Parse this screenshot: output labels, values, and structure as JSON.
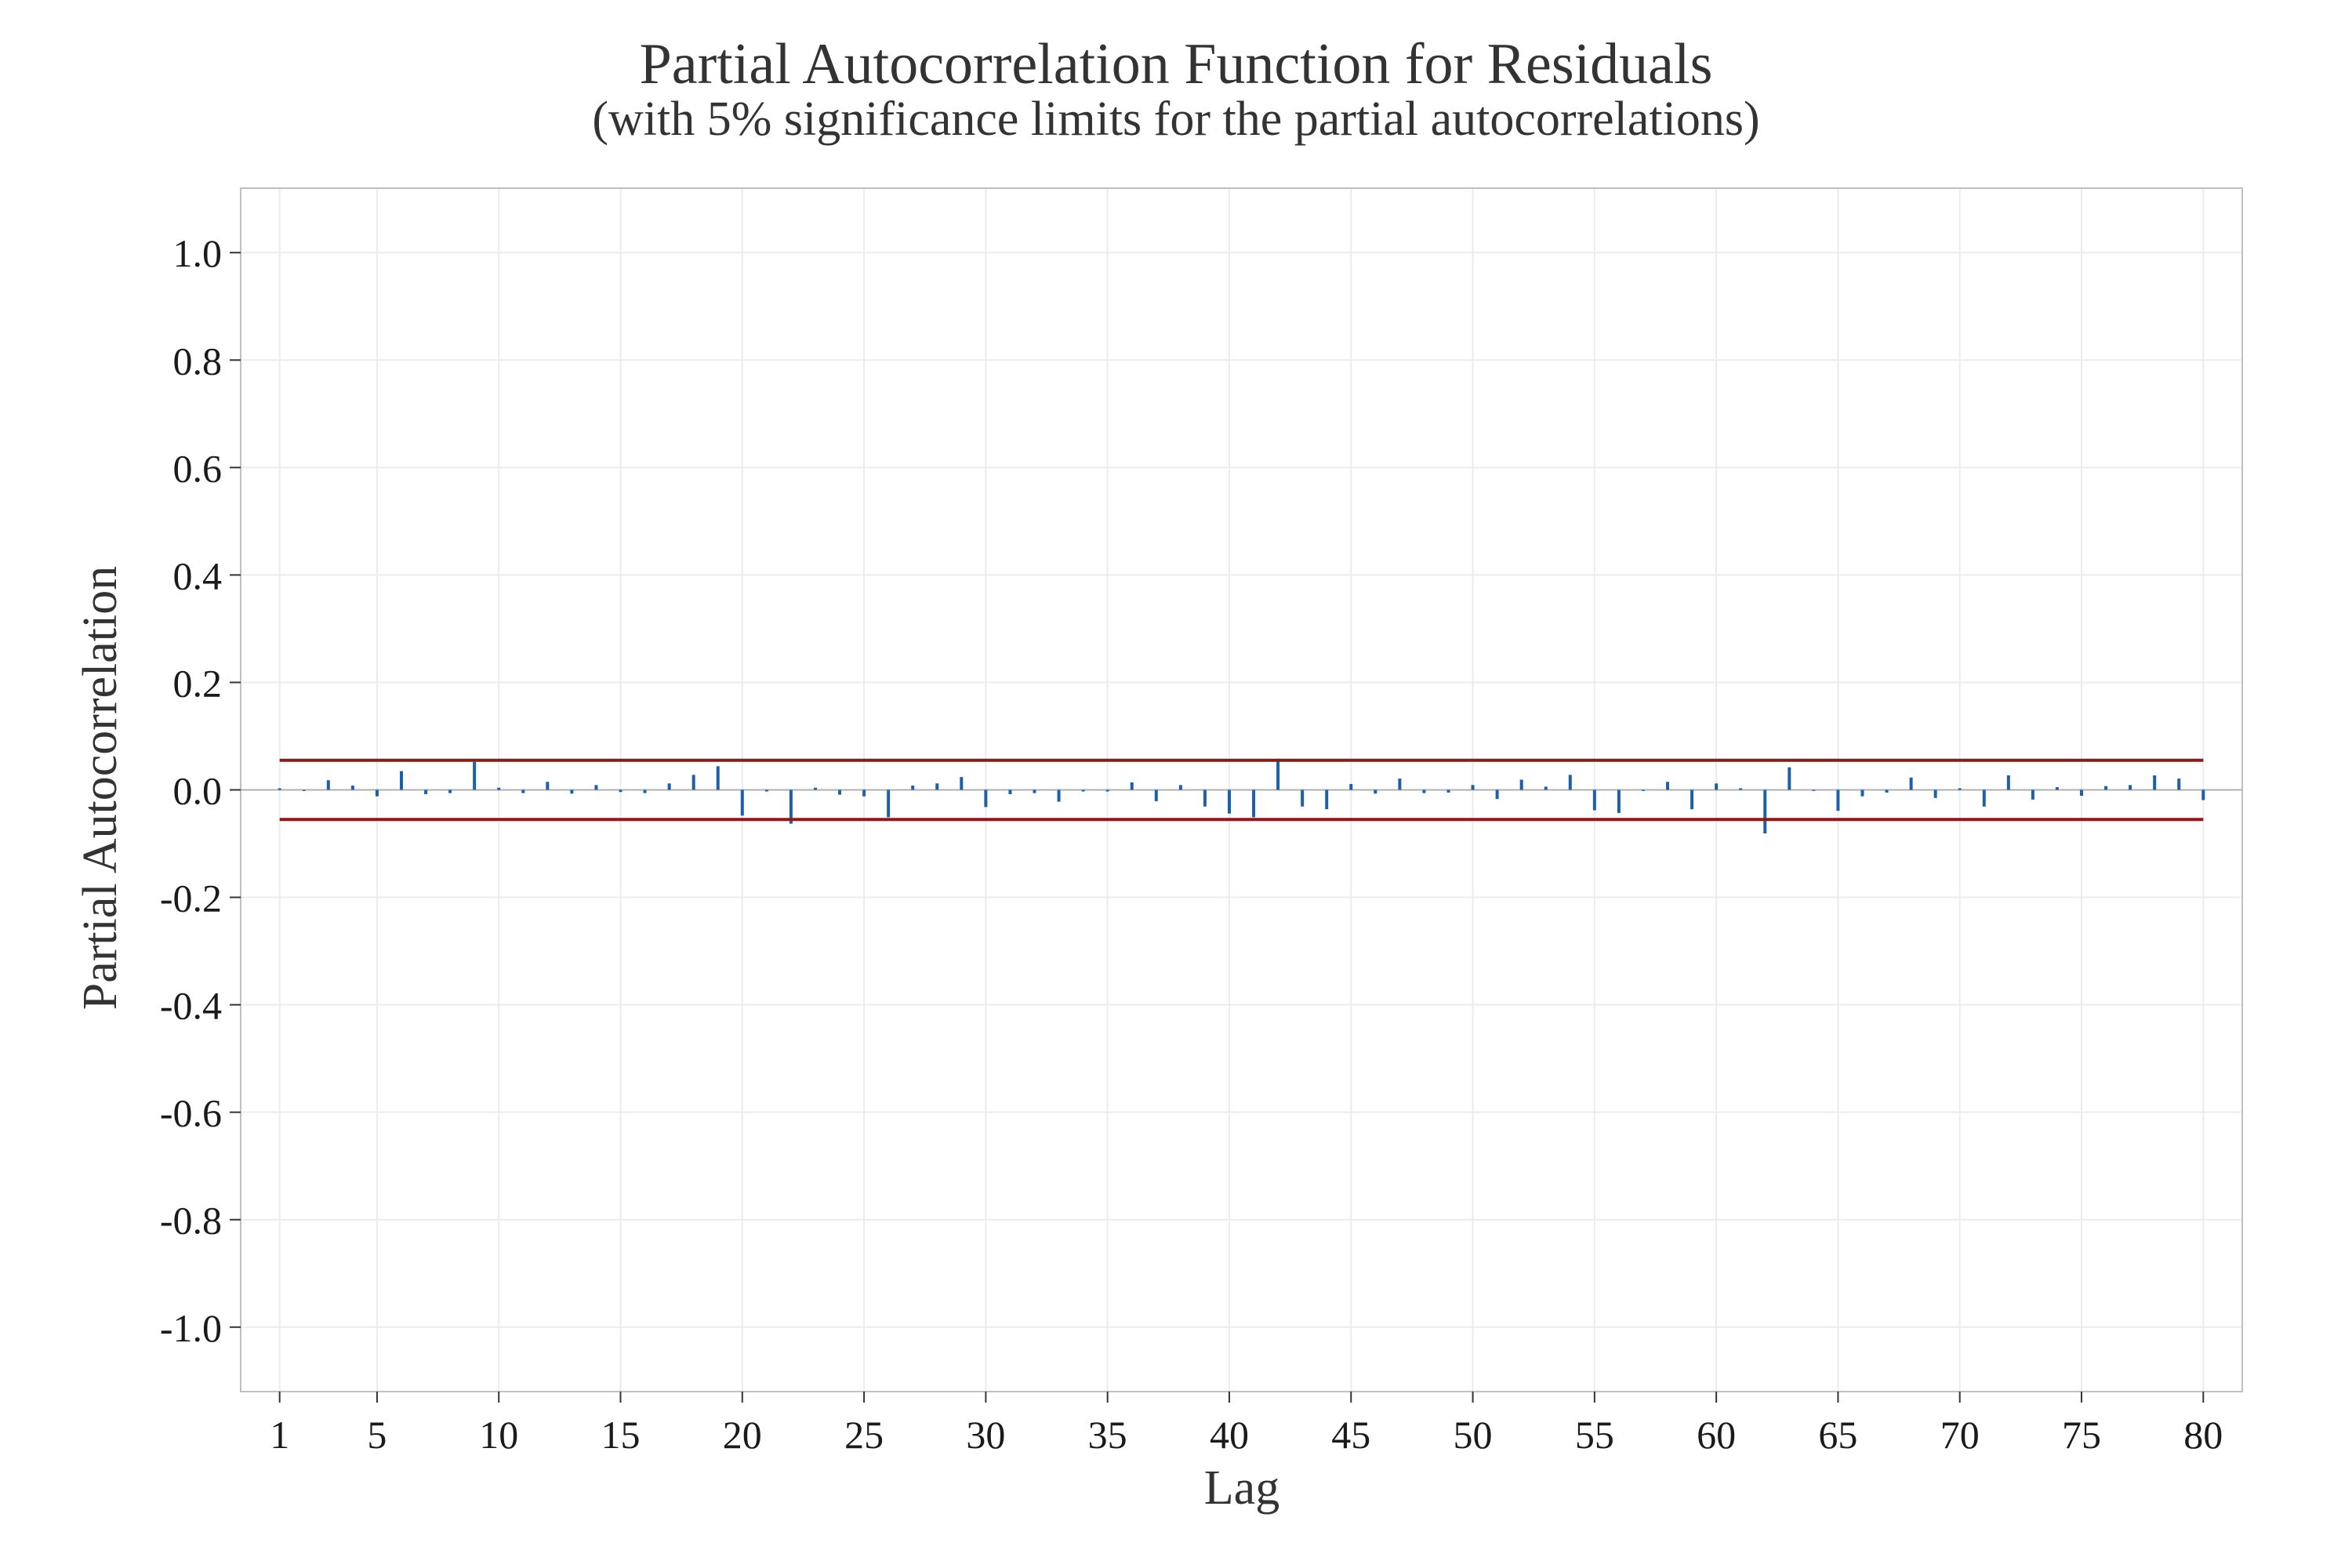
{
  "chart_data": {
    "type": "bar",
    "title": "Partial Autocorrelation Function for Residuals",
    "subtitle": "(with 5% significance limits for the partial autocorrelations)",
    "xlabel": "Lag",
    "ylabel": "Partial Autocorrelation",
    "xlim": [
      -0.6,
      81.6
    ],
    "ylim": [
      -1.12,
      1.12
    ],
    "x_ticks": [
      1,
      5,
      10,
      15,
      20,
      25,
      30,
      35,
      40,
      45,
      50,
      55,
      60,
      65,
      70,
      75,
      80
    ],
    "y_ticks": [
      1.0,
      0.8,
      0.6,
      0.4,
      0.2,
      0.0,
      -0.2,
      -0.4,
      -0.6,
      -0.8,
      -1.0
    ],
    "y_tick_labels": [
      "1.0",
      "0.8",
      "0.6",
      "0.4",
      "0.2",
      "0.0",
      "-0.2",
      "-0.4",
      "-0.6",
      "-0.8",
      "-1.0"
    ],
    "significance_limits": [
      0.055,
      -0.055
    ],
    "grid": true,
    "colors": {
      "bars": "#1f5fa8",
      "limits": "#8b1a1a",
      "zero_line": "#b0b0b0",
      "grid": "#ececec",
      "frame": "#c0c0c0"
    },
    "lags": [
      1,
      2,
      3,
      4,
      5,
      6,
      7,
      8,
      9,
      10,
      11,
      12,
      13,
      14,
      15,
      16,
      17,
      18,
      19,
      20,
      21,
      22,
      23,
      24,
      25,
      26,
      27,
      28,
      29,
      30,
      31,
      32,
      33,
      34,
      35,
      36,
      37,
      38,
      39,
      40,
      41,
      42,
      43,
      44,
      45,
      46,
      47,
      48,
      49,
      50,
      51,
      52,
      53,
      54,
      55,
      56,
      57,
      58,
      59,
      60,
      61,
      62,
      63,
      64,
      65,
      66,
      67,
      68,
      69,
      70,
      71,
      72,
      73,
      74,
      75,
      76,
      77,
      78,
      79,
      80
    ],
    "values": [
      0.003,
      -0.002,
      0.018,
      0.008,
      -0.012,
      0.035,
      -0.008,
      -0.006,
      0.052,
      0.004,
      -0.006,
      0.015,
      -0.007,
      0.009,
      -0.004,
      -0.006,
      0.012,
      0.028,
      0.044,
      -0.048,
      -0.003,
      -0.063,
      0.004,
      -0.009,
      -0.012,
      -0.051,
      0.008,
      0.012,
      0.024,
      -0.032,
      -0.008,
      -0.006,
      -0.022,
      -0.003,
      -0.003,
      0.014,
      -0.021,
      0.009,
      -0.031,
      -0.044,
      -0.051,
      0.058,
      -0.031,
      -0.036,
      0.011,
      -0.007,
      0.021,
      -0.006,
      -0.005,
      0.009,
      -0.017,
      0.019,
      0.006,
      0.028,
      -0.038,
      -0.043,
      -0.002,
      0.015,
      -0.036,
      0.012,
      0.003,
      -0.081,
      0.042,
      -0.002,
      -0.039,
      -0.012,
      -0.005,
      0.023,
      -0.015,
      0.003,
      -0.031,
      0.027,
      -0.018,
      0.005,
      -0.011,
      0.007,
      0.009,
      0.027,
      0.021,
      -0.019
    ]
  }
}
